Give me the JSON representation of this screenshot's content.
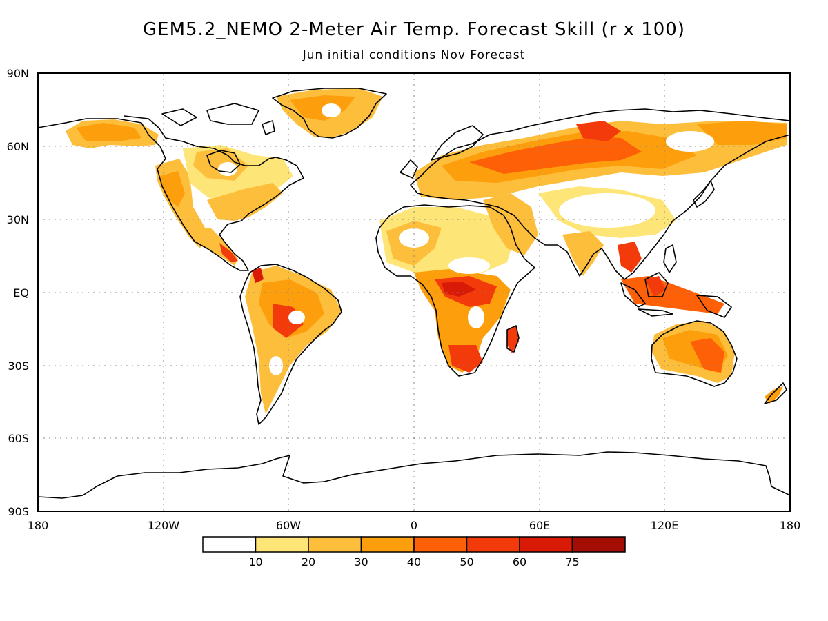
{
  "title": "GEM5.2_NEMO 2-Meter Air Temp. Forecast Skill (r x 100)",
  "subtitle": "Jun initial conditions  Nov Forecast",
  "lat_ticks": [
    "90N",
    "60N",
    "30N",
    "EQ",
    "30S",
    "60S",
    "90S"
  ],
  "lon_ticks": [
    "180",
    "120W",
    "60W",
    "0",
    "60E",
    "120E",
    "180"
  ],
  "colorbar": {
    "labels": [
      "10",
      "20",
      "30",
      "40",
      "50",
      "60",
      "75"
    ],
    "colors": [
      "#ffffff",
      "#fee577",
      "#fdbe3c",
      "#fd9f0c",
      "#fd6006",
      "#f33a0b",
      "#d81a07",
      "#a40d03"
    ]
  },
  "regions": [
    {
      "name": "Russia / Siberia",
      "skill": 50
    },
    {
      "name": "Central Africa",
      "skill": 60
    },
    {
      "name": "Amazon",
      "skill": 50
    },
    {
      "name": "Australia",
      "skill": 45
    },
    {
      "name": "Canada",
      "skill": 35
    },
    {
      "name": "Greenland",
      "skill": 35
    },
    {
      "name": "Sahara",
      "skill": 20
    },
    {
      "name": "Indochina",
      "skill": 50
    }
  ]
}
